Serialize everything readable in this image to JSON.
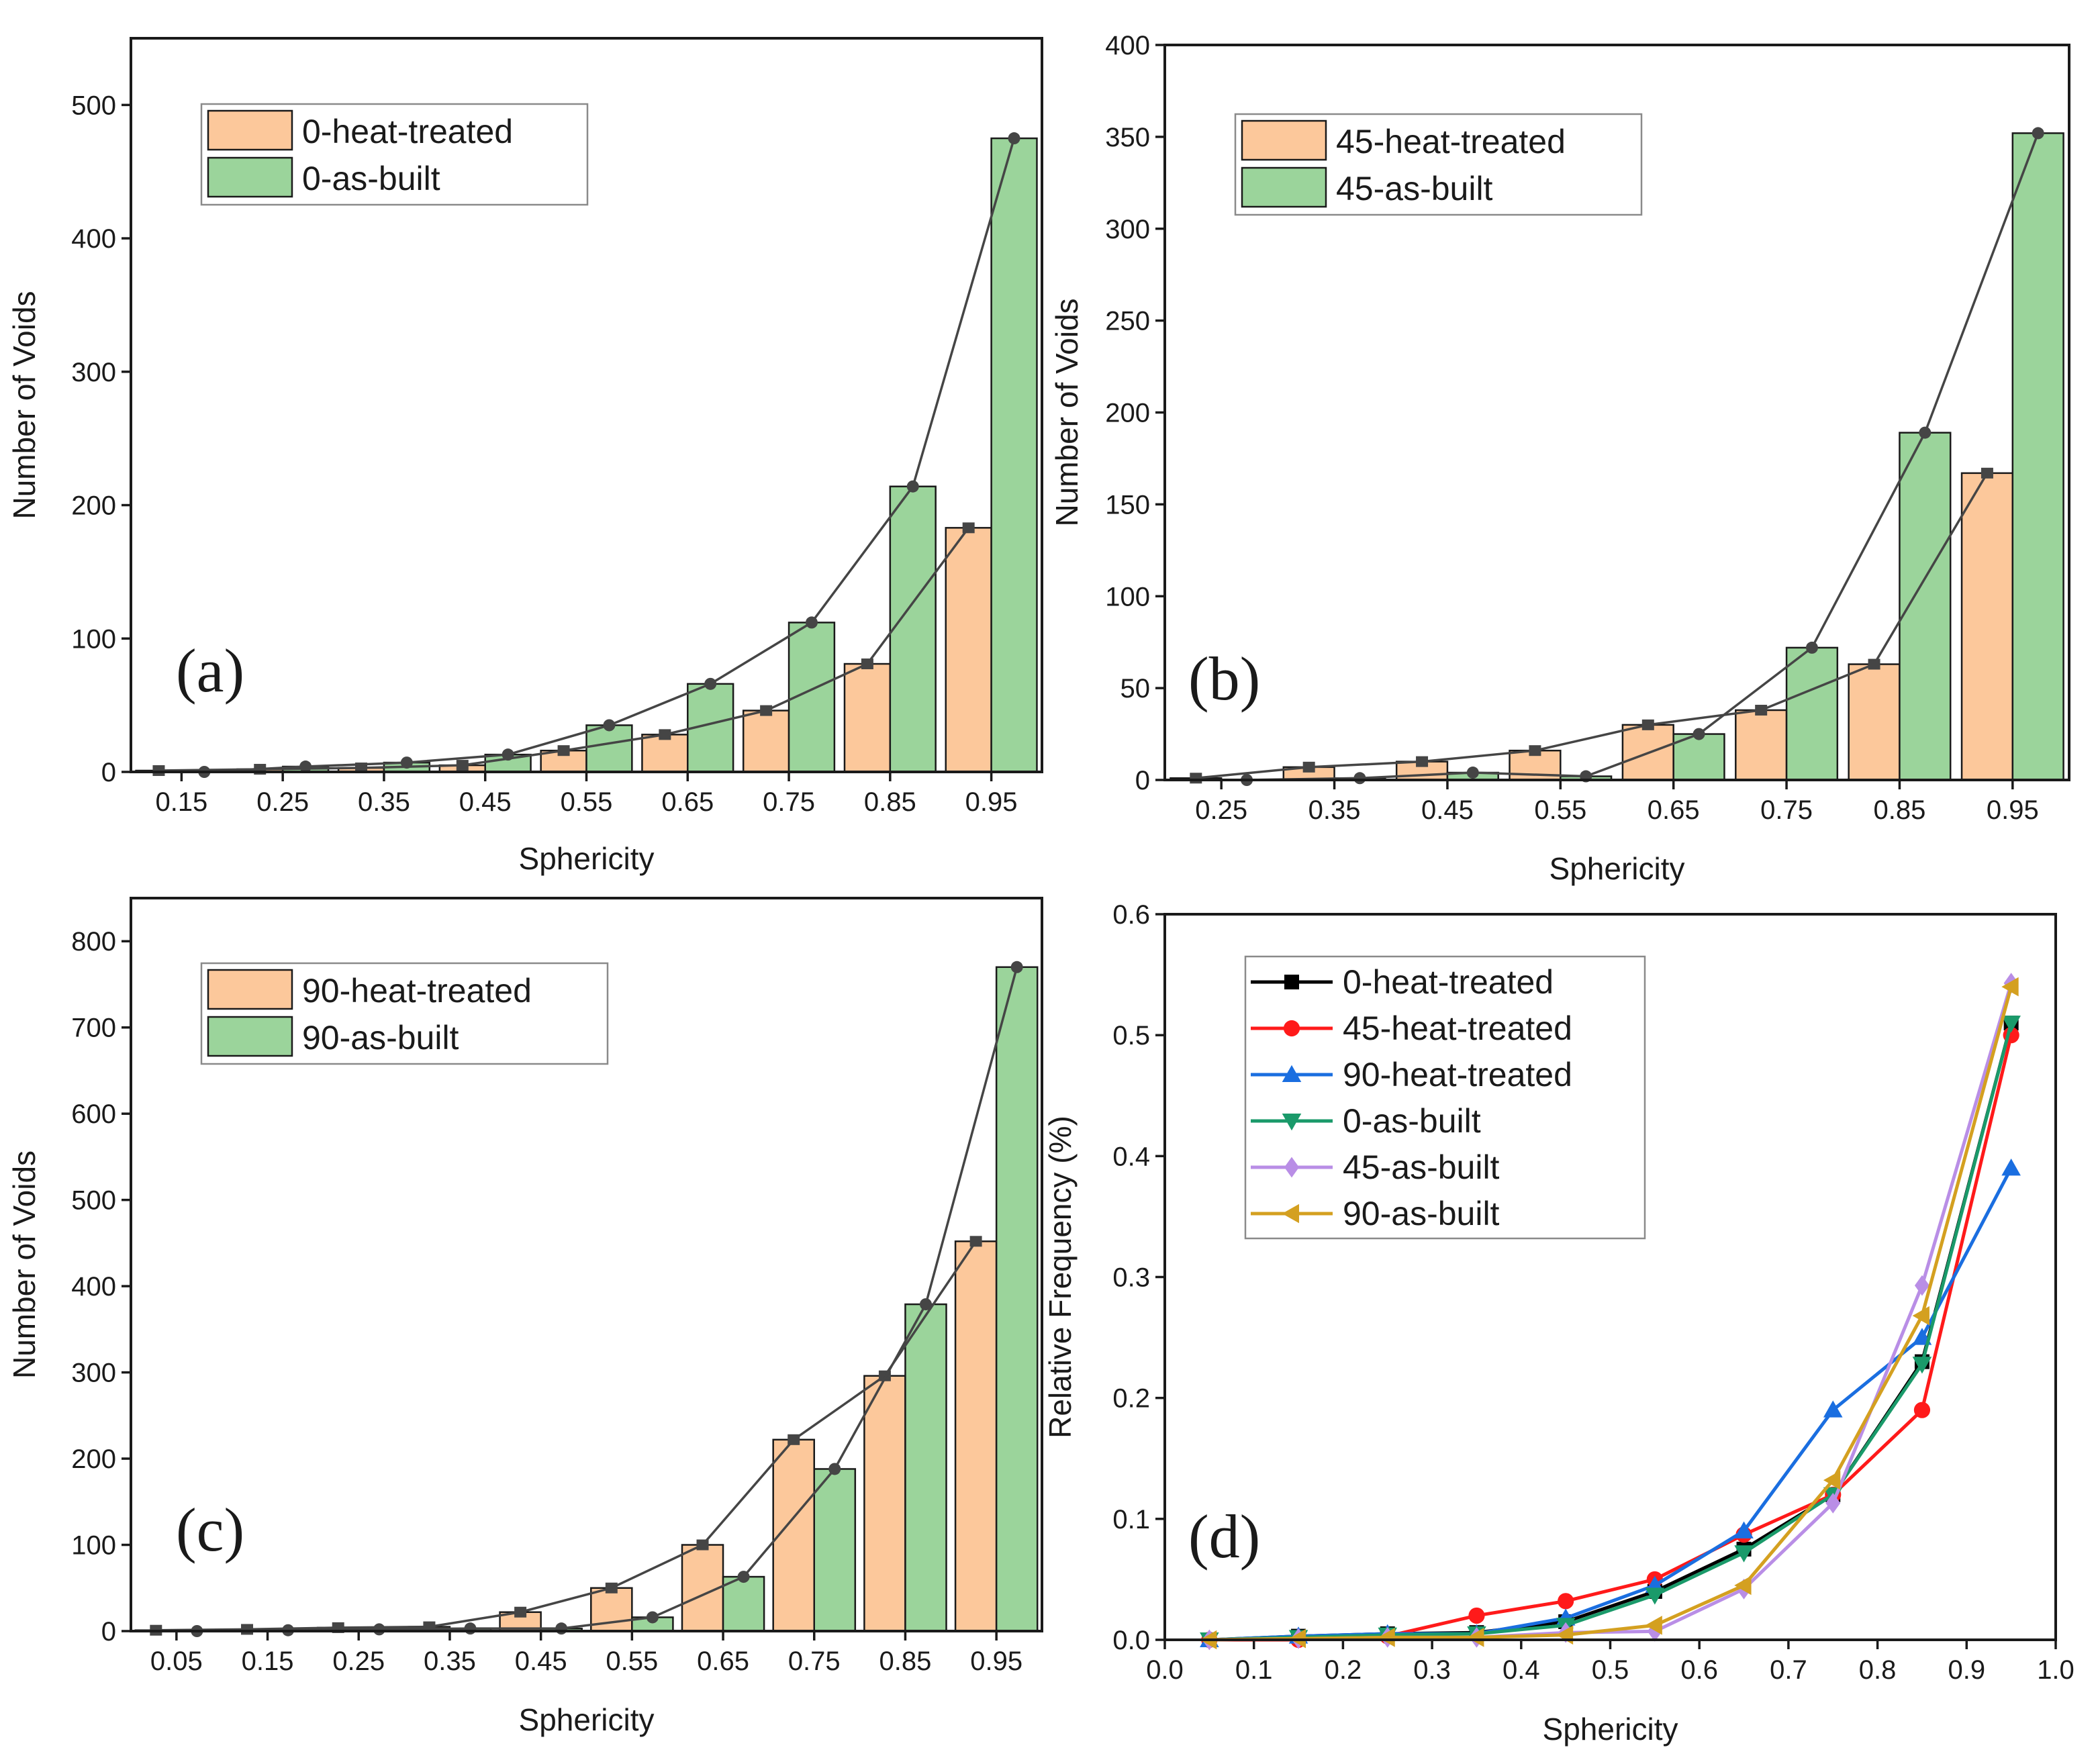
{
  "colors": {
    "heat_treated": "#fcc89b",
    "as_built": "#9bd49b",
    "trend_marker": "#454545",
    "axis": "#1a1a1a"
  },
  "chart_data": [
    {
      "id": "a",
      "type": "bar",
      "panel_label": "(a)",
      "xlabel": "Sphericity",
      "ylabel": "Number of Voids",
      "ylim": [
        0,
        550
      ],
      "yticks": [
        0,
        100,
        200,
        300,
        400,
        500
      ],
      "categories": [
        "0.15",
        "0.25",
        "0.35",
        "0.45",
        "0.55",
        "0.65",
        "0.75",
        "0.85",
        "0.95"
      ],
      "legend_position": "top-left",
      "series": [
        {
          "name": "0-heat-treated",
          "color": "#fcc89b",
          "values": [
            1,
            2,
            3,
            5,
            16,
            28,
            46,
            81,
            183
          ]
        },
        {
          "name": "0-as-built",
          "color": "#9bd49b",
          "values": [
            0,
            4,
            7,
            13,
            35,
            66,
            112,
            214,
            475
          ]
        }
      ]
    },
    {
      "id": "b",
      "type": "bar",
      "panel_label": "(b)",
      "xlabel": "Sphericity",
      "ylabel": "Number of Voids",
      "ylim": [
        0,
        400
      ],
      "yticks": [
        0,
        50,
        100,
        150,
        200,
        250,
        300,
        350,
        400
      ],
      "categories": [
        "0.25",
        "0.35",
        "0.45",
        "0.55",
        "0.65",
        "0.75",
        "0.85",
        "0.95"
      ],
      "legend_position": "top-left",
      "series": [
        {
          "name": "45-heat-treated",
          "color": "#fcc89b",
          "values": [
            1,
            7,
            10,
            16,
            30,
            38,
            63,
            167
          ]
        },
        {
          "name": "45-as-built",
          "color": "#9bd49b",
          "values": [
            0,
            1,
            4,
            2,
            25,
            72,
            189,
            352
          ]
        }
      ]
    },
    {
      "id": "c",
      "type": "bar",
      "panel_label": "(c)",
      "xlabel": "Sphericity",
      "ylabel": "Number of Voids",
      "ylim": [
        0,
        850
      ],
      "yticks": [
        0,
        100,
        200,
        300,
        400,
        500,
        600,
        700,
        800
      ],
      "categories": [
        "0.05",
        "0.15",
        "0.25",
        "0.35",
        "0.45",
        "0.55",
        "0.65",
        "0.75",
        "0.85",
        "0.95"
      ],
      "legend_position": "top-left",
      "series": [
        {
          "name": "90-heat-treated",
          "color": "#fcc89b",
          "values": [
            1,
            2,
            4,
            5,
            22,
            50,
            100,
            222,
            296,
            452
          ]
        },
        {
          "name": "90-as-built",
          "color": "#9bd49b",
          "values": [
            0,
            1,
            2,
            3,
            3,
            16,
            63,
            188,
            379,
            770
          ]
        }
      ]
    },
    {
      "id": "d",
      "type": "line",
      "panel_label": "(d)",
      "xlabel": "Sphericity",
      "ylabel": "Relative Frequency (%)",
      "xlim": [
        0.0,
        1.0
      ],
      "ylim": [
        0.0,
        0.6
      ],
      "xticks": [
        0.0,
        0.1,
        0.2,
        0.3,
        0.4,
        0.5,
        0.6,
        0.7,
        0.8,
        0.9,
        1.0
      ],
      "yticks": [
        0.0,
        0.1,
        0.2,
        0.3,
        0.4,
        0.5,
        0.6
      ],
      "legend_position": "top-left",
      "x": [
        0.05,
        0.15,
        0.25,
        0.35,
        0.45,
        0.55,
        0.65,
        0.75,
        0.85,
        0.95
      ],
      "series": [
        {
          "name": "0-heat-treated",
          "color": "#000000",
          "marker": "square",
          "values": [
            0.0,
            0.003,
            0.005,
            0.006,
            0.015,
            0.04,
            0.075,
            0.12,
            0.23,
            0.51
          ]
        },
        {
          "name": "45-heat-treated",
          "color": "#ff1a1a",
          "marker": "circle",
          "values": [
            0.0,
            0.0,
            0.003,
            0.02,
            0.032,
            0.05,
            0.087,
            0.12,
            0.19,
            0.5
          ]
        },
        {
          "name": "90-heat-treated",
          "color": "#1a6ee0",
          "marker": "triangle-up",
          "values": [
            0.0,
            0.003,
            0.005,
            0.005,
            0.018,
            0.045,
            0.09,
            0.19,
            0.25,
            0.39
          ]
        },
        {
          "name": "0-as-built",
          "color": "#1a9a6a",
          "marker": "triangle-down",
          "values": [
            0.0,
            0.002,
            0.004,
            0.005,
            0.012,
            0.037,
            0.072,
            0.12,
            0.228,
            0.51
          ]
        },
        {
          "name": "45-as-built",
          "color": "#b98ee6",
          "marker": "diamond",
          "values": [
            0.0,
            0.001,
            0.002,
            0.002,
            0.006,
            0.007,
            0.042,
            0.113,
            0.293,
            0.543
          ]
        },
        {
          "name": "90-as-built",
          "color": "#d4a020",
          "marker": "triangle-left",
          "values": [
            0.0,
            0.001,
            0.002,
            0.002,
            0.004,
            0.012,
            0.045,
            0.132,
            0.268,
            0.54
          ]
        }
      ]
    }
  ]
}
